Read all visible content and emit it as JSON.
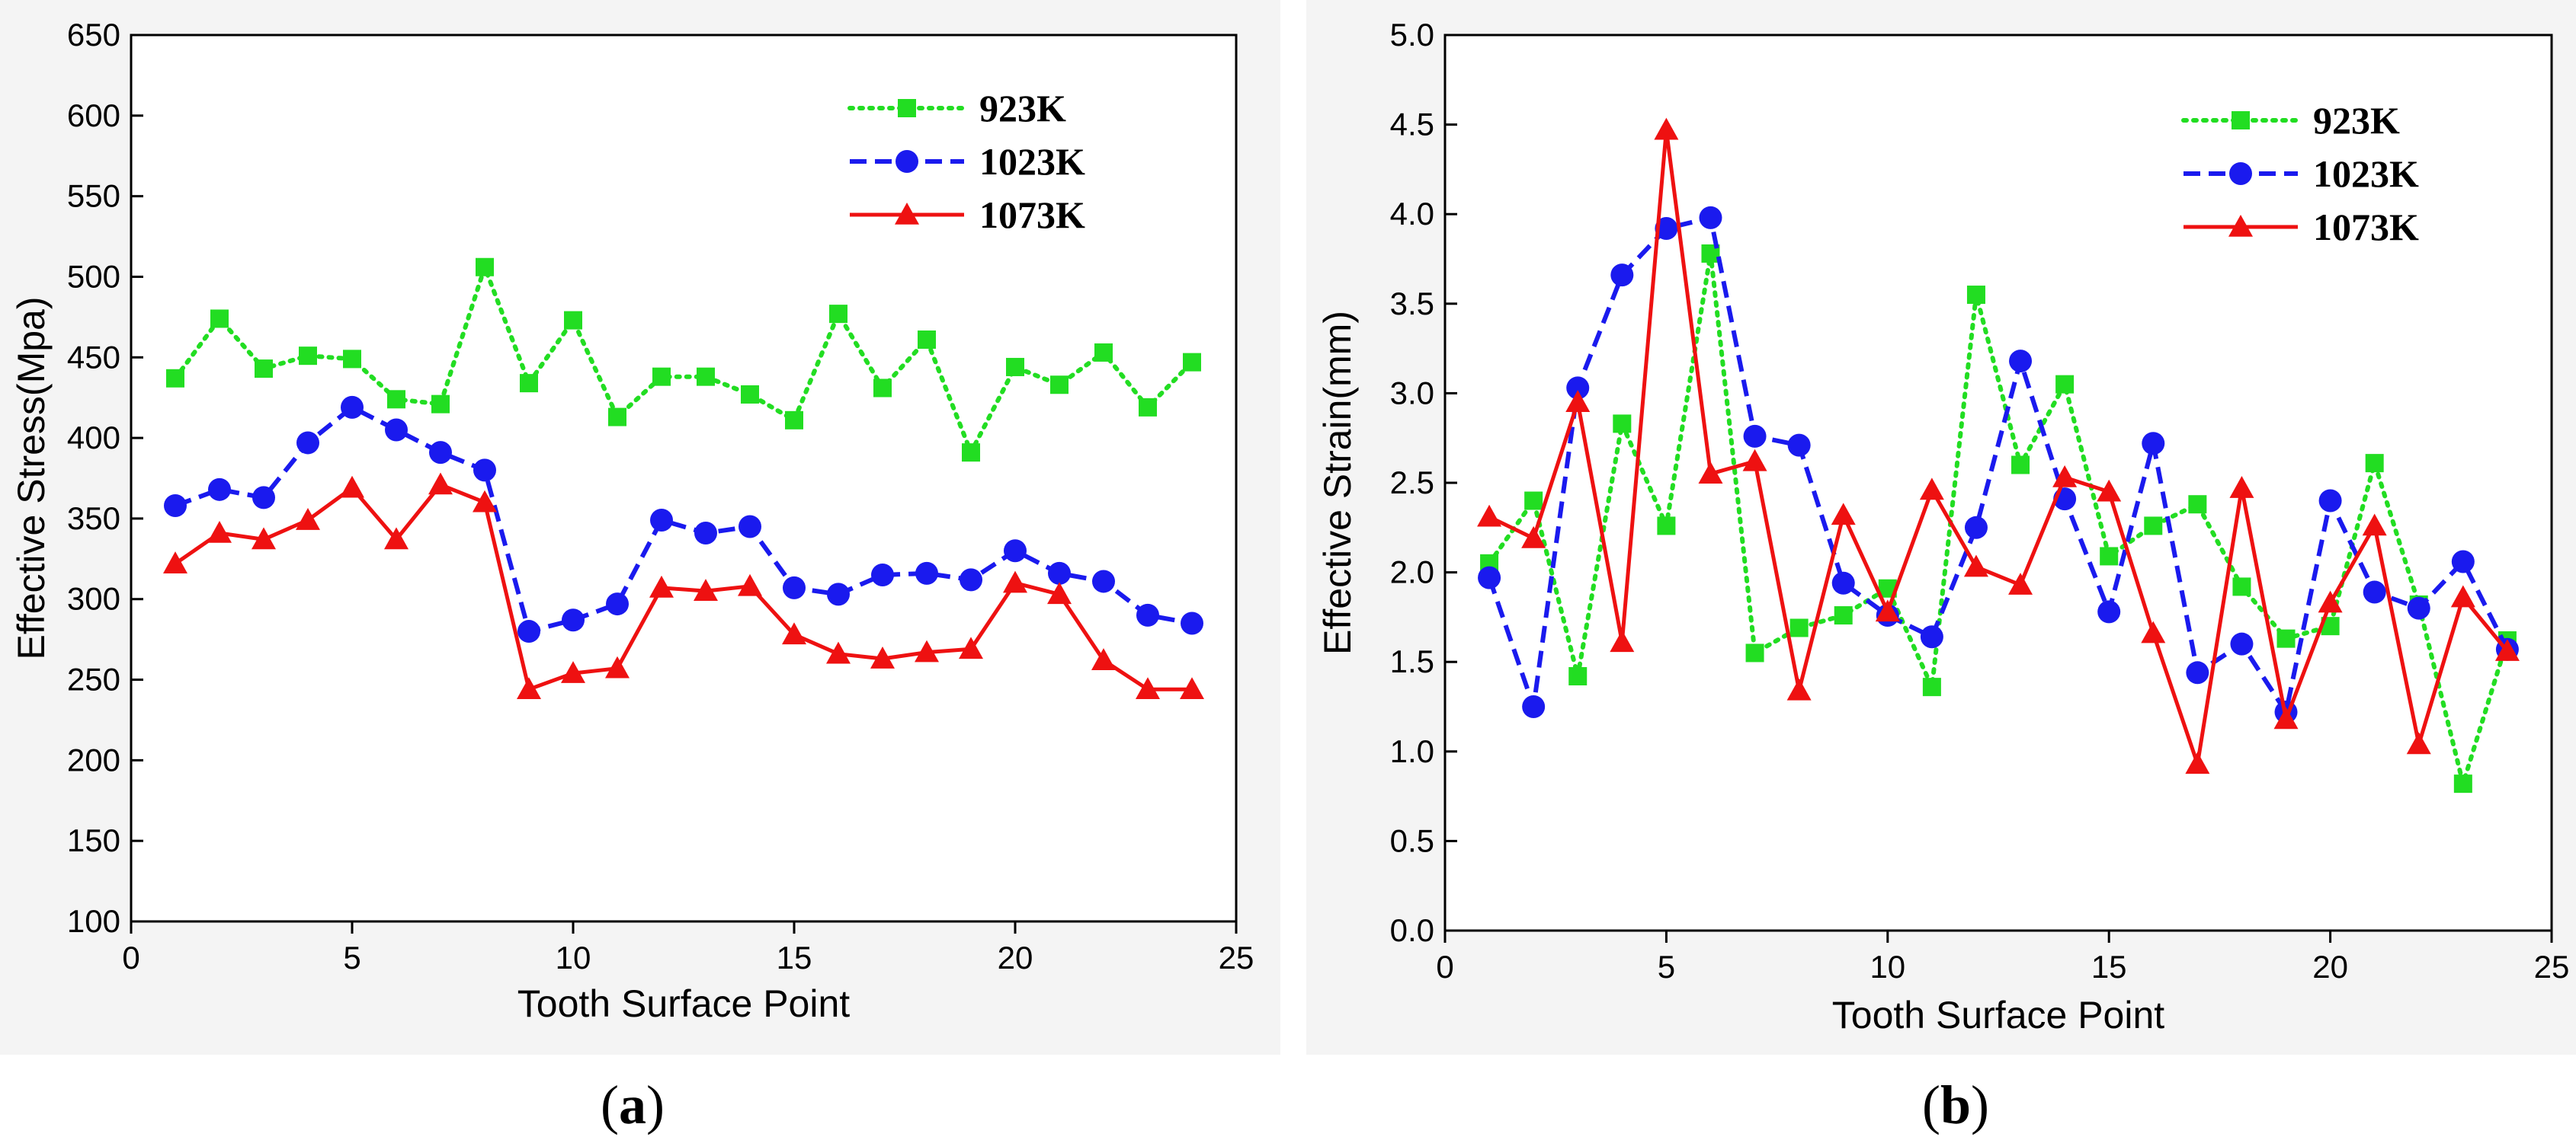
{
  "chart_data": [
    {
      "type": "line",
      "panel_label": "a",
      "xlabel": "Tooth Surface Point",
      "ylabel": "Effective Stress(Mpa)",
      "xlim": [
        0,
        25
      ],
      "ylim": [
        100,
        650
      ],
      "xticks": [
        0,
        5,
        10,
        15,
        20,
        25
      ],
      "yticks": [
        100,
        150,
        200,
        250,
        300,
        350,
        400,
        450,
        500,
        550,
        600,
        650
      ],
      "legend_position": "top-right",
      "x": [
        1,
        2,
        3,
        4,
        5,
        6,
        7,
        8,
        9,
        10,
        11,
        12,
        13,
        14,
        15,
        16,
        17,
        18,
        19,
        20,
        21,
        22,
        23,
        24
      ],
      "series": [
        {
          "name": "923K",
          "color": "#22dd22",
          "dash": "dotted",
          "marker": "square",
          "values": [
            437,
            474,
            443,
            451,
            449,
            424,
            421,
            506,
            434,
            473,
            413,
            438,
            438,
            427,
            411,
            477,
            431,
            461,
            391,
            444,
            433,
            453,
            419,
            447
          ]
        },
        {
          "name": "1023K",
          "color": "#1a1aee",
          "dash": "dashed",
          "marker": "circle",
          "values": [
            358,
            368,
            363,
            397,
            419,
            405,
            391,
            380,
            280,
            287,
            297,
            349,
            341,
            345,
            307,
            303,
            315,
            316,
            312,
            330,
            316,
            311,
            290,
            285
          ]
        },
        {
          "name": "1073K",
          "color": "#ee1111",
          "dash": "solid",
          "marker": "triangle",
          "values": [
            322,
            341,
            337,
            349,
            369,
            337,
            371,
            360,
            244,
            254,
            257,
            307,
            305,
            308,
            278,
            266,
            263,
            267,
            269,
            310,
            303,
            262,
            244,
            244
          ]
        }
      ]
    },
    {
      "type": "line",
      "panel_label": "b",
      "xlabel": "Tooth Surface Point",
      "ylabel": "Effective Strain(mm)",
      "xlim": [
        0,
        25
      ],
      "ylim": [
        0,
        5
      ],
      "xticks": [
        0,
        5,
        10,
        15,
        20,
        25
      ],
      "yticks": [
        0.0,
        0.5,
        1.0,
        1.5,
        2.0,
        2.5,
        3.0,
        3.5,
        4.0,
        4.5,
        5.0
      ],
      "legend_position": "top-right",
      "x": [
        1,
        2,
        3,
        4,
        5,
        6,
        7,
        8,
        9,
        10,
        11,
        12,
        13,
        14,
        15,
        16,
        17,
        18,
        19,
        20,
        21,
        22,
        23,
        24
      ],
      "series": [
        {
          "name": "923K",
          "color": "#22dd22",
          "dash": "dotted",
          "marker": "square",
          "values": [
            2.05,
            2.4,
            1.42,
            2.83,
            2.26,
            3.78,
            1.55,
            1.69,
            1.76,
            1.91,
            1.36,
            3.55,
            2.6,
            3.05,
            2.09,
            2.26,
            2.38,
            1.92,
            1.63,
            1.7,
            2.61,
            1.82,
            0.82,
            1.62
          ]
        },
        {
          "name": "1023K",
          "color": "#1a1aee",
          "dash": "dashed",
          "marker": "circle",
          "values": [
            1.97,
            1.25,
            3.03,
            3.66,
            3.92,
            3.98,
            2.76,
            2.71,
            1.94,
            1.76,
            1.64,
            2.25,
            3.18,
            2.41,
            1.78,
            2.72,
            1.44,
            1.6,
            1.22,
            2.4,
            1.89,
            1.8,
            2.06,
            1.57
          ]
        },
        {
          "name": "1073K",
          "color": "#ee1111",
          "dash": "solid",
          "marker": "triangle",
          "values": [
            2.31,
            2.19,
            2.95,
            1.61,
            4.47,
            2.55,
            2.62,
            1.34,
            2.32,
            1.78,
            2.46,
            2.03,
            1.93,
            2.53,
            2.45,
            1.66,
            0.93,
            2.47,
            1.18,
            1.83,
            2.26,
            1.04,
            1.86,
            1.56
          ]
        }
      ]
    }
  ]
}
